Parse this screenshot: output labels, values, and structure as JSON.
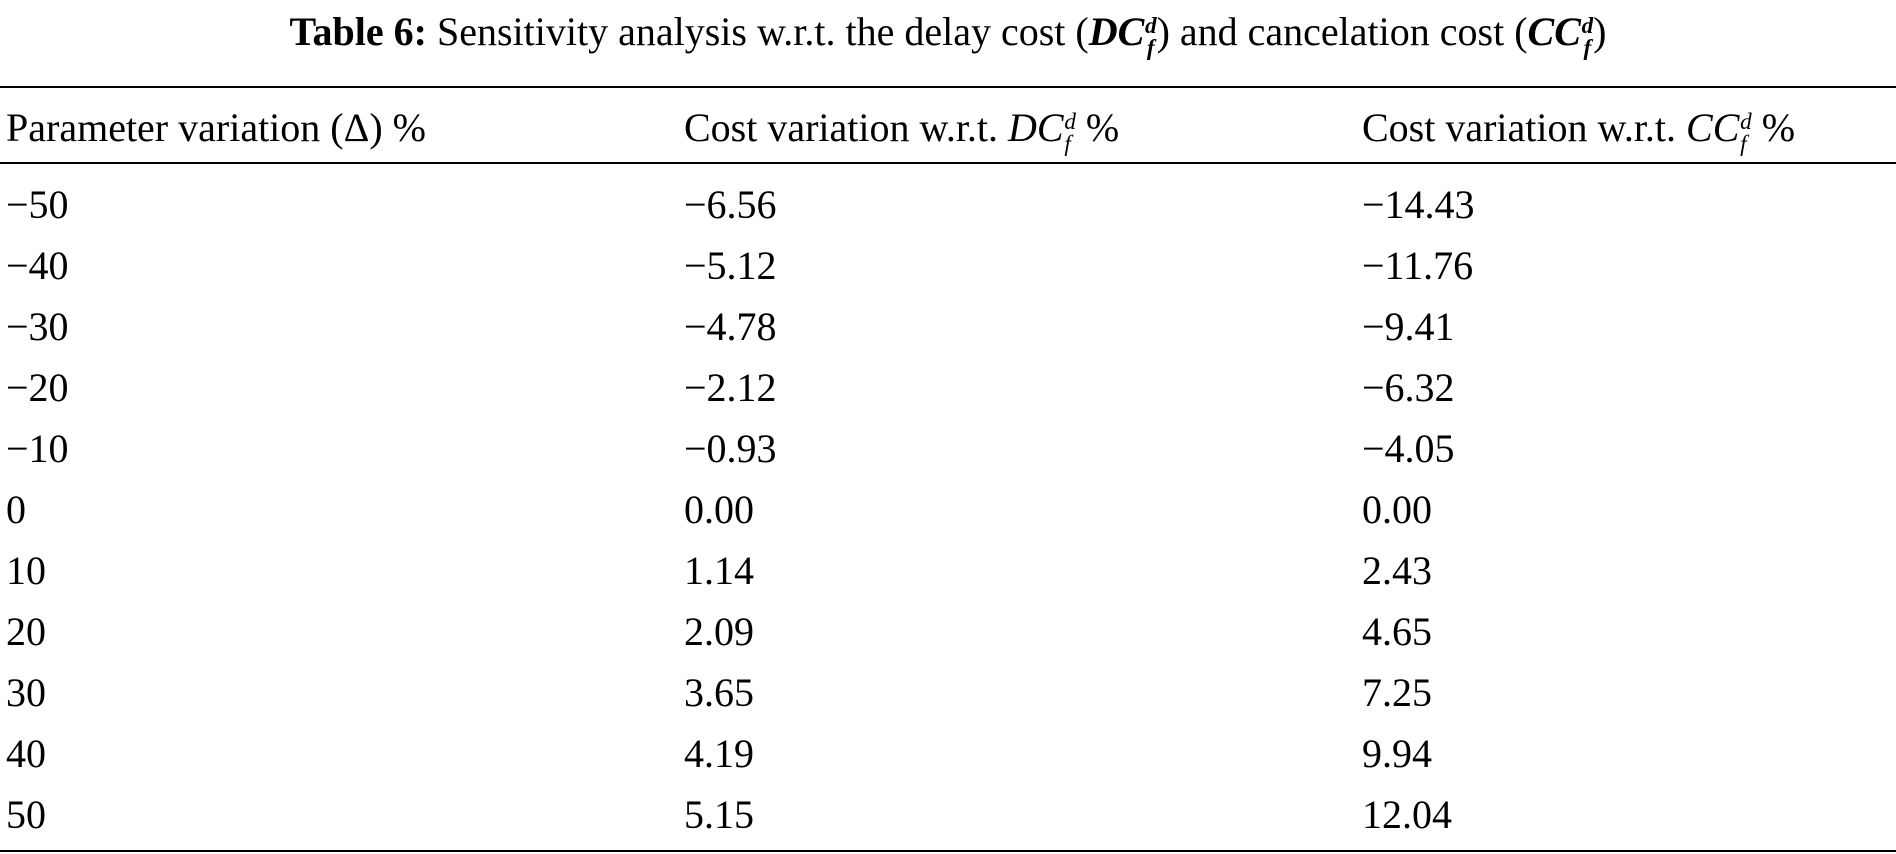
{
  "caption": {
    "label": "Table 6:",
    "text_before": "Sensitivity analysis w.r.t. the delay cost (",
    "sym1": "DC",
    "sym1_sup": "d",
    "sym1_sub": "f",
    "text_middle": ") and cancelation cost (",
    "sym2": "CC",
    "sym2_sup": "d",
    "sym2_sub": "f",
    "text_after": ")"
  },
  "columns": {
    "col1": "Parameter variation (Δ) %",
    "col2_prefix": "Cost variation w.r.t.",
    "col2_sym": "DC",
    "col2_sup": "d",
    "col2_sub": "f",
    "col2_suffix": "%",
    "col3_prefix": "Cost variation w.r.t.",
    "col3_sym": "CC",
    "col3_sup": "d",
    "col3_sub": "f",
    "col3_suffix": "%"
  },
  "rows": [
    {
      "delta": "−50",
      "dc": "−6.56",
      "cc": "−14.43"
    },
    {
      "delta": "−40",
      "dc": "−5.12",
      "cc": "−11.76"
    },
    {
      "delta": "−30",
      "dc": "−4.78",
      "cc": "−9.41"
    },
    {
      "delta": "−20",
      "dc": "−2.12",
      "cc": "−6.32"
    },
    {
      "delta": "−10",
      "dc": "−0.93",
      "cc": "−4.05"
    },
    {
      "delta": "0",
      "dc": "0.00",
      "cc": "0.00"
    },
    {
      "delta": "10",
      "dc": "1.14",
      "cc": "2.43"
    },
    {
      "delta": "20",
      "dc": "2.09",
      "cc": "4.65"
    },
    {
      "delta": "30",
      "dc": "3.65",
      "cc": "7.25"
    },
    {
      "delta": "40",
      "dc": "4.19",
      "cc": "9.94"
    },
    {
      "delta": "50",
      "dc": "5.15",
      "cc": "12.04"
    }
  ]
}
